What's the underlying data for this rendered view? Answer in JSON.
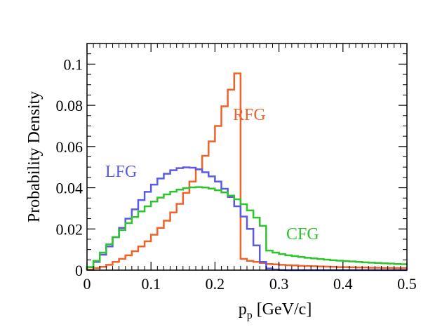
{
  "chart_data": {
    "type": "line",
    "style": "step-histogram",
    "xlabel": "p_p [GeV/c]",
    "xlabel_main": "p",
    "xlabel_sub": "p",
    "xlabel_rest": " [GeV/c]",
    "ylabel": "Probability Density",
    "xlim": [
      0,
      0.5
    ],
    "ylim": [
      0,
      0.11
    ],
    "grid": false,
    "bin_width": 0.01,
    "x_ticks": [
      "0",
      "0.1",
      "0.2",
      "0.3",
      "0.4",
      "0.5"
    ],
    "x_tick_values": [
      0,
      0.1,
      0.2,
      0.3,
      0.4,
      0.5
    ],
    "y_ticks": [
      "0",
      "0.02",
      "0.04",
      "0.06",
      "0.08",
      "0.1"
    ],
    "y_tick_values": [
      0,
      0.02,
      0.04,
      0.06,
      0.08,
      0.1
    ],
    "x": [
      0.0,
      0.01,
      0.02,
      0.03,
      0.04,
      0.05,
      0.06,
      0.07,
      0.08,
      0.09,
      0.1,
      0.11,
      0.12,
      0.13,
      0.14,
      0.15,
      0.16,
      0.17,
      0.18,
      0.19,
      0.2,
      0.21,
      0.22,
      0.23,
      0.24,
      0.25,
      0.26,
      0.27,
      0.28,
      0.29,
      0.3,
      0.31,
      0.32,
      0.33,
      0.34,
      0.35,
      0.36,
      0.37,
      0.38,
      0.39,
      0.4,
      0.41,
      0.42,
      0.43,
      0.44,
      0.45,
      0.46,
      0.47,
      0.48,
      0.49
    ],
    "series": [
      {
        "name": "RFG",
        "color": "#f0622a",
        "values": [
          0.0003,
          0.001,
          0.0016,
          0.0026,
          0.004,
          0.0055,
          0.0072,
          0.0092,
          0.0115,
          0.014,
          0.0172,
          0.0205,
          0.024,
          0.028,
          0.0322,
          0.0375,
          0.043,
          0.049,
          0.0555,
          0.0625,
          0.07,
          0.0795,
          0.0876,
          0.0955,
          0.0055,
          0.0045,
          0.004,
          0.0035,
          0.003,
          0.0028,
          0.0026,
          0.0024,
          0.0023,
          0.0021,
          0.002,
          0.0019,
          0.0018,
          0.0017,
          0.0016,
          0.0015,
          0.0015,
          0.0014,
          0.0013,
          0.0013,
          0.0012,
          0.0012,
          0.0011,
          0.0011,
          0.001,
          0.001
        ]
      },
      {
        "name": "LFG",
        "color": "#5a5ae6",
        "values": [
          0.0015,
          0.004,
          0.0075,
          0.0115,
          0.016,
          0.0205,
          0.025,
          0.0295,
          0.034,
          0.038,
          0.0415,
          0.0445,
          0.0468,
          0.0485,
          0.0495,
          0.0499,
          0.0497,
          0.0489,
          0.0475,
          0.0455,
          0.043,
          0.0395,
          0.0355,
          0.031,
          0.026,
          0.02,
          0.012,
          0.004,
          0.0008,
          0.0003,
          0.0001,
          0.0,
          0.0,
          0.0,
          0.0,
          0.0,
          0.0,
          0.0,
          0.0,
          0.0,
          0.0,
          0.0,
          0.0,
          0.0,
          0.0,
          0.0,
          0.0,
          0.0,
          0.0,
          0.0
        ]
      },
      {
        "name": "CFG",
        "color": "#2ec42e",
        "values": [
          0.0015,
          0.0045,
          0.0085,
          0.0125,
          0.016,
          0.0195,
          0.0228,
          0.0258,
          0.0285,
          0.031,
          0.0333,
          0.0352,
          0.0368,
          0.0381,
          0.0391,
          0.0398,
          0.0402,
          0.0403,
          0.0401,
          0.0396,
          0.0388,
          0.0377,
          0.0362,
          0.0344,
          0.032,
          0.029,
          0.0255,
          0.0215,
          0.0095,
          0.0085,
          0.0078,
          0.0072,
          0.0068,
          0.0064,
          0.006,
          0.0057,
          0.0054,
          0.0051,
          0.0048,
          0.0046,
          0.0044,
          0.0042,
          0.004,
          0.0038,
          0.0036,
          0.0035,
          0.0033,
          0.0032,
          0.003,
          0.0029
        ]
      }
    ]
  }
}
